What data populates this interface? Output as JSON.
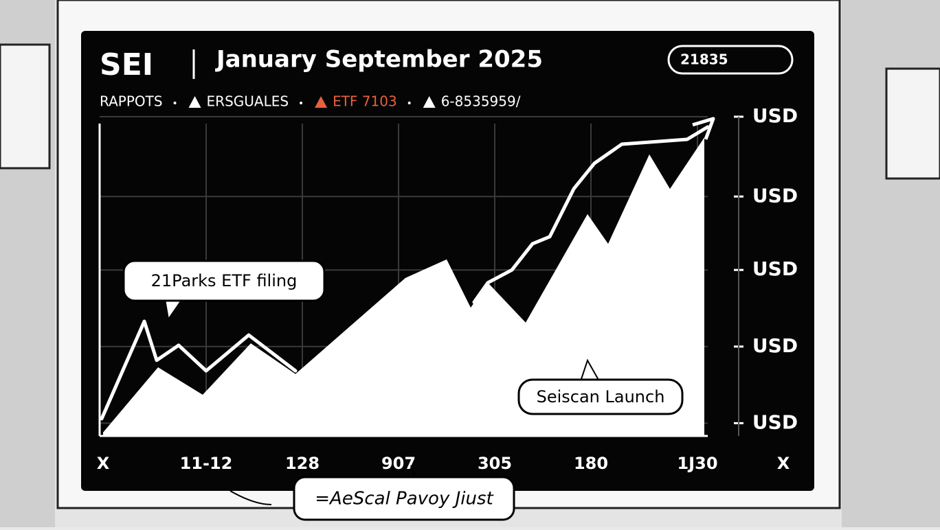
{
  "chart_data": {
    "type": "line",
    "title": "SEI",
    "subtitle": "January September 2025",
    "badge": "21835",
    "legend": [
      {
        "label": "RAPPOTS"
      },
      {
        "label": "ERSGUALES",
        "color": "#ffffff"
      },
      {
        "label": "ETF 7103",
        "color": "#e8603c"
      },
      {
        "label": "6-8535959/",
        "color": "#ffffff"
      }
    ],
    "xlim": [
      0,
      100
    ],
    "ylim": [
      0,
      100
    ],
    "xticks": [
      {
        "value": 0.5,
        "label": "X"
      },
      {
        "value": 15.5,
        "label": "11-12"
      },
      {
        "value": 29.5,
        "label": "128"
      },
      {
        "value": 43.5,
        "label": "907"
      },
      {
        "value": 57.5,
        "label": "305"
      },
      {
        "value": 71.5,
        "label": "180"
      },
      {
        "value": 87,
        "label": "1J30"
      },
      {
        "value": 99.5,
        "label": "X"
      }
    ],
    "yticks": [
      {
        "value": 100,
        "label": "USD"
      },
      {
        "value": 75,
        "label": "USD"
      },
      {
        "value": 52,
        "label": "USD"
      },
      {
        "value": 28,
        "label": "USD"
      },
      {
        "value": 4,
        "label": "USD"
      }
    ],
    "grid": true,
    "series": [
      {
        "type": "line",
        "color": "#ffffff",
        "x": [
          0.3,
          6.5,
          8.3,
          11.5,
          15.5,
          21.7,
          28.5,
          40,
          54.5,
          56.5,
          60,
          63,
          65.5,
          69,
          72,
          76,
          85.5,
          88.5
        ],
        "values": [
          5.4,
          35.9,
          23.7,
          28.4,
          20.4,
          31.6,
          20.4,
          null,
          41.9,
          48,
          52,
          60.2,
          62.4,
          77.4,
          85.4,
          91.4,
          92.9,
          96.8
        ]
      },
      {
        "type": "area",
        "color": "#ffffff",
        "x": [
          0.5,
          8.5,
          15,
          22,
          28.5,
          44.5,
          50.5,
          54,
          56.5,
          62,
          71,
          74,
          80,
          83,
          88
        ],
        "values": [
          1.1,
          21.5,
          12.9,
          29,
          19.4,
          49.5,
          55.3,
          40.2,
          48,
          35.5,
          69.5,
          60.2,
          88.2,
          77.4,
          93.5
        ]
      }
    ],
    "annotations": [
      "21Parks ETF filing",
      "Seiscan Launch",
      "=AeScal Pavoy Jiust"
    ]
  }
}
